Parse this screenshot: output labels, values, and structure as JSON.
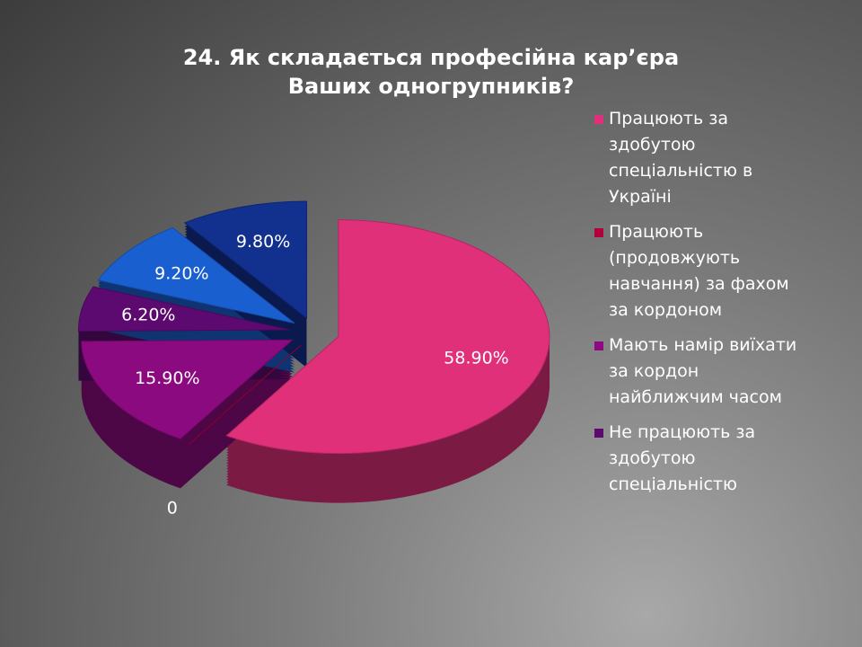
{
  "chart_data": {
    "type": "pie",
    "title": "24. Як складається професійна кар’єра Ваших одногрупників?",
    "categories": [
      "Працюють за здобутою спеціальністю в Україні",
      "Працюють (продовжують навчання) за фахом за кордоном",
      "Мають намір виїхати за кордон найближчим часом",
      "Не працюють за здобутою спеціальністю",
      null,
      null
    ],
    "values": [
      58.9,
      0,
      15.9,
      6.2,
      9.2,
      9.8
    ],
    "value_labels": [
      "58.90%",
      "0",
      "15.90%",
      "6.20%",
      "9.20%",
      "9.80%"
    ],
    "colors": [
      "#e0307a",
      "#b0003e",
      "#8c0a80",
      "#5c0a70",
      "#1a5fd0",
      "#12308e"
    ]
  }
}
